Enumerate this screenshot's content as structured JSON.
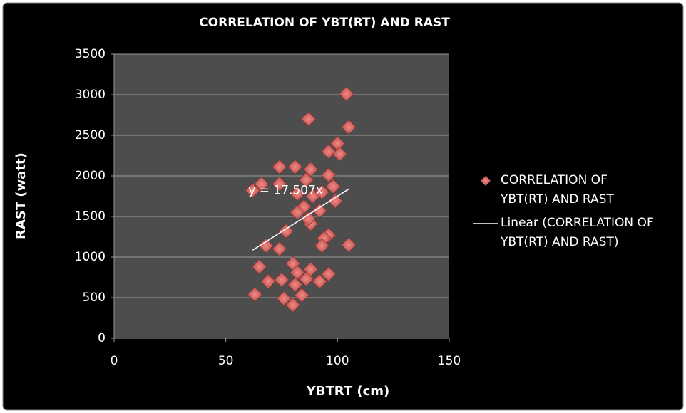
{
  "chart_data": {
    "type": "scatter",
    "title": "CORRELATION OF YBT(RT) AND RAST",
    "x_label": "YBTRT (cm)",
    "y_label": "RAST (watt)",
    "xlim": [
      0,
      150
    ],
    "xticks": [
      0,
      50,
      100,
      150
    ],
    "ylim": [
      0,
      3500
    ],
    "yticks": [
      0,
      500,
      1000,
      1500,
      2000,
      2500,
      3000,
      3500
    ],
    "grid": true,
    "legend": "right",
    "series": [
      {
        "name": "CORRELATION OF YBT(RT) AND RAST",
        "color": "#c0504d",
        "x": [
          104,
          87,
          105,
          100,
          96,
          101,
          74,
          81,
          88,
          96,
          66,
          74,
          86,
          98,
          62,
          82,
          89,
          93,
          99,
          85,
          82,
          92,
          88,
          87,
          77,
          96,
          94,
          93,
          105,
          68,
          74,
          80,
          65,
          88,
          96,
          82,
          69,
          75,
          86,
          81,
          92,
          63,
          76,
          84,
          80
        ],
        "y": [
          3010,
          2700,
          2600,
          2400,
          2300,
          2270,
          2110,
          2110,
          2080,
          2010,
          1900,
          1900,
          1950,
          1870,
          1820,
          1780,
          1750,
          1800,
          1690,
          1620,
          1550,
          1570,
          1410,
          1470,
          1320,
          1270,
          1230,
          1140,
          1150,
          1140,
          1100,
          920,
          880,
          850,
          790,
          810,
          700,
          720,
          730,
          660,
          700,
          540,
          490,
          530,
          410
        ]
      }
    ],
    "trendline": {
      "name": "Linear (CORRELATION OF YBT(RT) AND RAST)",
      "label": "y = 17.507x",
      "slope": 17.507,
      "color": "#ffffff"
    }
  }
}
